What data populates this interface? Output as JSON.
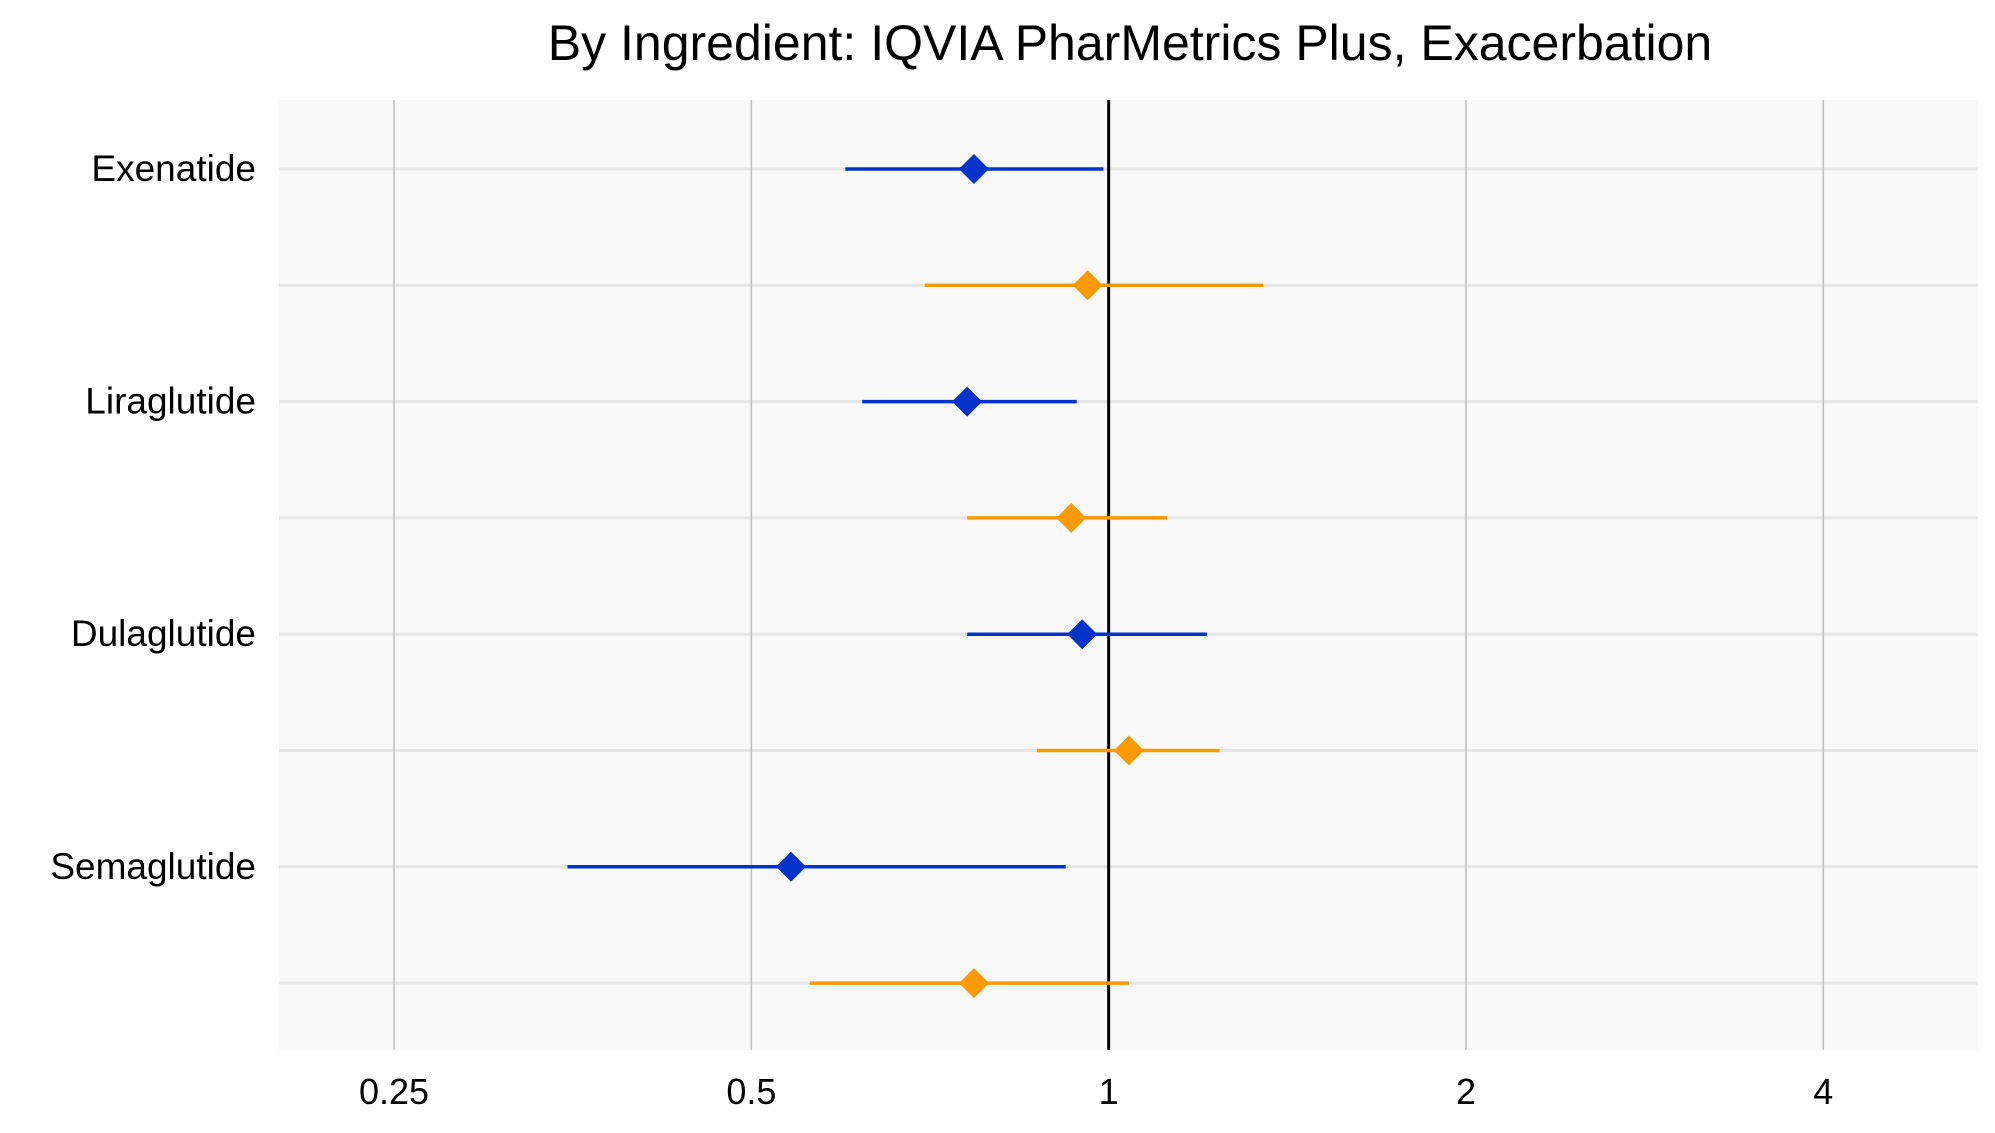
{
  "chart_data": {
    "type": "forest",
    "title": "By Ingredient: IQVIA PharMetrics Plus, Exacerbation",
    "xlabel": "",
    "ylabel": "",
    "x_scale": "log2",
    "xlim": [
      0.2,
      5.4
    ],
    "x_ticks": [
      0.25,
      0.5,
      1,
      2,
      4
    ],
    "x_tick_labels": [
      "0.25",
      "0.5",
      "1",
      "2",
      "4"
    ],
    "reference_line": 1,
    "grid": true,
    "legend": "none",
    "categories": [
      "Exenatide",
      "Liraglutide",
      "Dulaglutide",
      "Semaglutide"
    ],
    "series": [
      {
        "color": "#0033cc",
        "points": [
          {
            "category": "Exenatide",
            "estimate": 0.77,
            "lower": 0.6,
            "upper": 0.99
          },
          {
            "category": "Liraglutide",
            "estimate": 0.76,
            "lower": 0.62,
            "upper": 0.94
          },
          {
            "category": "Dulaglutide",
            "estimate": 0.95,
            "lower": 0.76,
            "upper": 1.21
          },
          {
            "category": "Semaglutide",
            "estimate": 0.54,
            "lower": 0.35,
            "upper": 0.92
          }
        ]
      },
      {
        "color": "#ff9900",
        "points": [
          {
            "category": "Exenatide",
            "estimate": 0.96,
            "lower": 0.7,
            "upper": 1.35
          },
          {
            "category": "Liraglutide",
            "estimate": 0.93,
            "lower": 0.76,
            "upper": 1.12
          },
          {
            "category": "Dulaglutide",
            "estimate": 1.04,
            "lower": 0.87,
            "upper": 1.24
          },
          {
            "category": "Semaglutide",
            "estimate": 0.77,
            "lower": 0.56,
            "upper": 1.04
          }
        ]
      }
    ]
  }
}
